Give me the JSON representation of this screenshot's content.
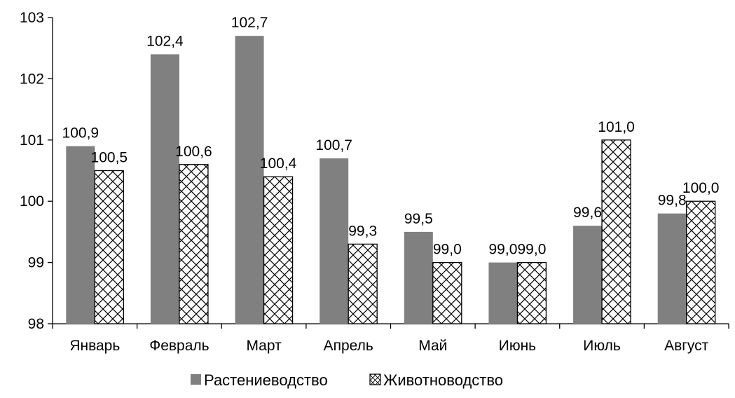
{
  "chart_data": {
    "type": "bar",
    "categories": [
      "Январь",
      "Февраль",
      "Март",
      "Апрель",
      "Май",
      "Июнь",
      "Июль",
      "Август"
    ],
    "series": [
      {
        "name": "Растениеводство",
        "values": [
          100.9,
          102.4,
          102.7,
          100.7,
          99.5,
          99.0,
          99.6,
          99.8
        ],
        "labels": [
          "100,9",
          "102,4",
          "102,7",
          "100,7",
          "99,5",
          "99,0",
          "99,6",
          "99,8"
        ],
        "color": "#808080"
      },
      {
        "name": "Животноводство",
        "values": [
          100.5,
          100.6,
          100.4,
          99.3,
          99.0,
          99.0,
          101.0,
          100.0
        ],
        "labels": [
          "100,5",
          "100,6",
          "100,4",
          "99,3",
          "99,0",
          "99,0",
          "101,0",
          "100,0"
        ],
        "color": "#ffffff"
      }
    ],
    "ylim": [
      98,
      103
    ],
    "yticks": [
      "98",
      "99",
      "100",
      "101",
      "102",
      "103"
    ],
    "grid": false,
    "legend_position": "bottom"
  }
}
